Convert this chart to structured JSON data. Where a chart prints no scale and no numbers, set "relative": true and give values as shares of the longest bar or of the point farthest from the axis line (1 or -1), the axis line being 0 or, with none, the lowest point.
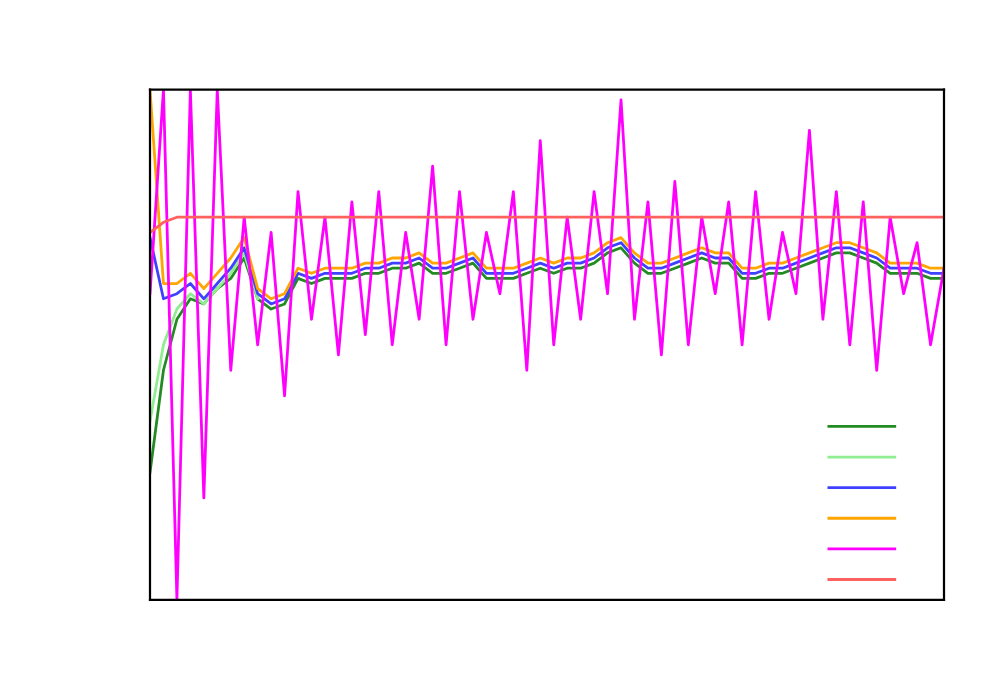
{
  "chart_data": {
    "type": "line",
    "relative": true,
    "marker": "none",
    "line_style": "solid",
    "categories": [
      null,
      null,
      null,
      null,
      null,
      null,
      null,
      null,
      null,
      null,
      null,
      null,
      null,
      null,
      null,
      null,
      null,
      null,
      null,
      null,
      null,
      null,
      null,
      null,
      null,
      null,
      null,
      null,
      null,
      null,
      null,
      null,
      null,
      null,
      null,
      null,
      null,
      null,
      null,
      null,
      null,
      null,
      null,
      null,
      null,
      null,
      null,
      null,
      null,
      null,
      null,
      null,
      null,
      null,
      null,
      null,
      null,
      null,
      null,
      null
    ],
    "series": [
      {
        "color": "#228b22",
        "values": [
          0.25,
          0.45,
          0.55,
          0.59,
          0.58,
          0.61,
          0.63,
          0.67,
          0.59,
          0.57,
          0.58,
          0.63,
          0.62,
          0.63,
          0.63,
          0.63,
          0.64,
          0.64,
          0.65,
          0.65,
          0.66,
          0.64,
          0.64,
          0.65,
          0.66,
          0.63,
          0.63,
          0.63,
          0.64,
          0.65,
          0.64,
          0.65,
          0.65,
          0.66,
          0.68,
          0.69,
          0.66,
          0.64,
          0.64,
          0.65,
          0.66,
          0.67,
          0.66,
          0.66,
          0.63,
          0.63,
          0.64,
          0.64,
          0.65,
          0.66,
          0.67,
          0.68,
          0.68,
          0.67,
          0.66,
          0.64,
          0.64,
          0.64,
          0.63,
          0.63
        ]
      },
      {
        "color": "#90ee90",
        "values": [
          0.35,
          0.5,
          0.57,
          0.6,
          0.58,
          0.61,
          0.64,
          0.68,
          0.59,
          null,
          null,
          null,
          null,
          null,
          null,
          null,
          null,
          null,
          null,
          null,
          null,
          null,
          null,
          null,
          null,
          null,
          null,
          null,
          null,
          null,
          null,
          null,
          null,
          null,
          null,
          null,
          null,
          null,
          null,
          null,
          null,
          null,
          null,
          null,
          null,
          null,
          null,
          null,
          null,
          null,
          null,
          null,
          null,
          null,
          null,
          null,
          null,
          null,
          null,
          null
        ]
      },
      {
        "color": "#4040ff",
        "values": [
          0.71,
          0.59,
          0.6,
          0.62,
          0.59,
          0.62,
          0.65,
          0.69,
          0.6,
          0.58,
          0.59,
          0.64,
          0.63,
          0.64,
          0.64,
          0.64,
          0.65,
          0.65,
          0.66,
          0.66,
          0.67,
          0.65,
          0.65,
          0.66,
          0.67,
          0.64,
          0.64,
          0.64,
          0.65,
          0.66,
          0.65,
          0.66,
          0.66,
          0.67,
          0.69,
          0.7,
          0.67,
          0.65,
          0.65,
          0.66,
          0.67,
          0.68,
          0.67,
          0.67,
          0.64,
          0.64,
          0.65,
          0.65,
          0.66,
          0.67,
          0.68,
          0.69,
          0.69,
          0.68,
          0.67,
          0.65,
          0.65,
          0.65,
          0.64,
          0.64
        ]
      },
      {
        "color": "#ffa500",
        "values": [
          1.0,
          0.62,
          0.62,
          0.64,
          0.61,
          0.64,
          0.67,
          0.71,
          0.61,
          0.59,
          0.6,
          0.65,
          0.64,
          0.65,
          0.65,
          0.65,
          0.66,
          0.66,
          0.67,
          0.67,
          0.68,
          0.66,
          0.66,
          0.67,
          0.68,
          0.65,
          0.65,
          0.65,
          0.66,
          0.67,
          0.66,
          0.67,
          0.67,
          0.68,
          0.7,
          0.71,
          0.68,
          0.66,
          0.66,
          0.67,
          0.68,
          0.69,
          0.68,
          0.68,
          0.65,
          0.65,
          0.66,
          0.66,
          0.67,
          0.68,
          0.69,
          0.7,
          0.7,
          0.69,
          0.68,
          0.66,
          0.66,
          0.66,
          0.65,
          0.65
        ]
      },
      {
        "color": "#ff00ff",
        "values": [
          0.6,
          1.0,
          0.0,
          1.0,
          0.2,
          1.0,
          0.45,
          0.75,
          0.5,
          0.72,
          0.4,
          0.8,
          0.55,
          0.75,
          0.48,
          0.78,
          0.52,
          0.8,
          0.5,
          0.72,
          0.55,
          0.85,
          0.5,
          0.8,
          0.55,
          0.72,
          0.6,
          0.8,
          0.45,
          0.9,
          0.5,
          0.75,
          0.55,
          0.8,
          0.6,
          0.98,
          0.55,
          0.78,
          0.48,
          0.82,
          0.5,
          0.75,
          0.6,
          0.78,
          0.5,
          0.8,
          0.55,
          0.72,
          0.6,
          0.92,
          0.55,
          0.8,
          0.5,
          0.78,
          0.45,
          0.75,
          0.6,
          0.7,
          0.5,
          0.65
        ]
      },
      {
        "color": "#ff6060",
        "values": [
          0.72,
          0.74,
          0.75,
          0.75,
          0.75,
          0.75,
          0.75,
          0.75,
          0.75,
          0.75,
          0.75,
          0.75,
          0.75,
          0.75,
          0.75,
          0.75,
          0.75,
          0.75,
          0.75,
          0.75,
          0.75,
          0.75,
          0.75,
          0.75,
          0.75,
          0.75,
          0.75,
          0.75,
          0.75,
          0.75,
          0.75,
          0.75,
          0.75,
          0.75,
          0.75,
          0.75,
          0.75,
          0.75,
          0.75,
          0.75,
          0.75,
          0.75,
          0.75,
          0.75,
          0.75,
          0.75,
          0.75,
          0.75,
          0.75,
          0.75,
          0.75,
          0.75,
          0.75,
          0.75,
          0.75,
          0.75,
          0.75,
          0.75,
          0.75,
          0.75
        ]
      }
    ]
  }
}
